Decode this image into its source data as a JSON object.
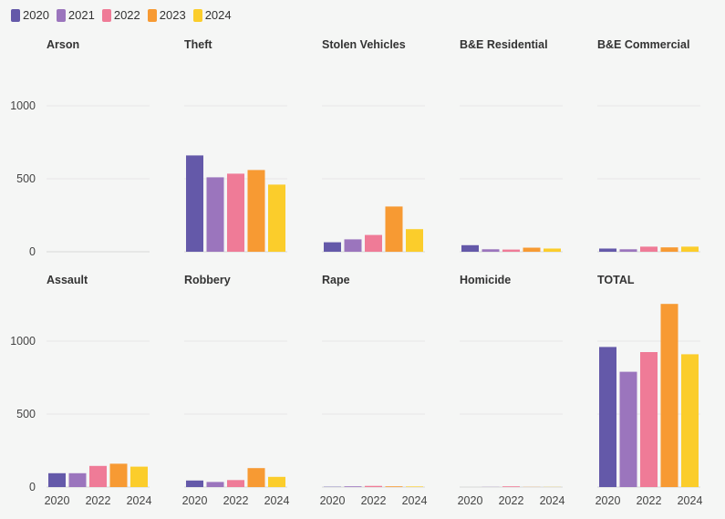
{
  "chart_data": {
    "type": "bar",
    "layout": "small-multiples",
    "series_names": [
      "2020",
      "2021",
      "2022",
      "2023",
      "2024"
    ],
    "colors": [
      "#6459a9",
      "#9b75bd",
      "#ef7b97",
      "#f79a33",
      "#fbcd2b"
    ],
    "y_ticks": [
      0,
      500,
      1000
    ],
    "x_tick_labels": [
      "2020",
      "2022",
      "2024"
    ],
    "ylim": [
      0,
      1300
    ],
    "panels": [
      {
        "title": "Arson",
        "values": [
          0,
          0,
          0,
          0,
          0
        ]
      },
      {
        "title": "Theft",
        "values": [
          660,
          510,
          535,
          560,
          460
        ]
      },
      {
        "title": "Stolen Vehicles",
        "values": [
          65,
          85,
          115,
          310,
          155
        ]
      },
      {
        "title": "B&E Residential",
        "values": [
          45,
          17,
          15,
          28,
          22
        ]
      },
      {
        "title": "B&E Commercial",
        "values": [
          22,
          17,
          35,
          30,
          35
        ]
      },
      {
        "title": "Assault",
        "values": [
          95,
          95,
          145,
          160,
          140
        ]
      },
      {
        "title": "Robbery",
        "values": [
          45,
          35,
          48,
          130,
          70
        ]
      },
      {
        "title": "Rape",
        "values": [
          2,
          5,
          8,
          5,
          4
        ]
      },
      {
        "title": "Homicide",
        "values": [
          0,
          1,
          5,
          1,
          1
        ]
      },
      {
        "title": "TOTAL",
        "values": [
          960,
          790,
          925,
          1255,
          910
        ]
      }
    ]
  }
}
